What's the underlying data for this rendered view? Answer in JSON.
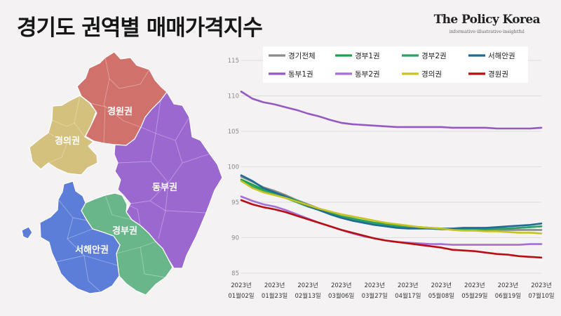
{
  "header": {
    "title": "경기도 권역별 매매가격지수",
    "brand_name": "The Policy Korea",
    "brand_tagline": "informative·illustrative·insightful"
  },
  "map": {
    "regions": [
      {
        "key": "gyeongwon",
        "label": "경원권",
        "color": "#d0716b"
      },
      {
        "key": "gyeongui",
        "label": "경의권",
        "color": "#d4c17e"
      },
      {
        "key": "dongbu",
        "label": "동부권",
        "color": "#9b68cf"
      },
      {
        "key": "gyeongbu",
        "label": "경부권",
        "color": "#68b68a"
      },
      {
        "key": "seohaean",
        "label": "서해안권",
        "color": "#5d7ed8"
      }
    ]
  },
  "chart_data": {
    "type": "line",
    "title": "",
    "xlabel": "",
    "ylabel": "",
    "ylim": [
      85,
      115
    ],
    "yticks": [
      85,
      90,
      95,
      100,
      105,
      110,
      115
    ],
    "grid": true,
    "legend_position": "top",
    "x": [
      "2023년 01월02일",
      "2023년 01월09일",
      "2023년 01월16일",
      "2023년 01월23일",
      "2023년 01월30일",
      "2023년 02월06일",
      "2023년 02월13일",
      "2023년 02월20일",
      "2023년 02월27일",
      "2023년 03월06일",
      "2023년 03월13일",
      "2023년 03월20일",
      "2023년 03월27일",
      "2023년 04월03일",
      "2023년 04월10일",
      "2023년 04월17일",
      "2023년 04월24일",
      "2023년 05월01일",
      "2023년 05월08일",
      "2023년 05월15일",
      "2023년 05월22일",
      "2023년 05월29일",
      "2023년 06월05일",
      "2023년 06월12일",
      "2023년 06월19일",
      "2023년 06월26일",
      "2023년 07월03일",
      "2023년 07월10일"
    ],
    "xtick_labels": [
      {
        "line1": "2023년",
        "line2": "01월02일"
      },
      {
        "line1": "2023년",
        "line2": "01월23일"
      },
      {
        "line1": "2023년",
        "line2": "02월13일"
      },
      {
        "line1": "2023년",
        "line2": "03월06일"
      },
      {
        "line1": "2023년",
        "line2": "03월27일"
      },
      {
        "line1": "2023년",
        "line2": "04월17일"
      },
      {
        "line1": "2023년",
        "line2": "05월08일"
      },
      {
        "line1": "2023년",
        "line2": "05월29일"
      },
      {
        "line1": "2023년",
        "line2": "06월19일"
      },
      {
        "line1": "2023년",
        "line2": "07월10일"
      }
    ],
    "series": [
      {
        "name": "경기전체",
        "color": "#8a8a8a",
        "values": [
          98.6,
          97.9,
          97.1,
          96.6,
          96.0,
          95.3,
          94.7,
          94.1,
          93.5,
          93.0,
          92.7,
          92.3,
          92.0,
          91.8,
          91.6,
          91.5,
          91.4,
          91.3,
          91.2,
          91.2,
          91.2,
          91.1,
          91.1,
          91.1,
          91.1,
          91.1,
          91.1,
          91.1
        ]
      },
      {
        "name": "경부1권",
        "color": "#1aa34a",
        "values": [
          98.2,
          97.5,
          96.8,
          96.3,
          95.8,
          95.2,
          94.6,
          94.0,
          93.5,
          93.0,
          92.7,
          92.4,
          92.1,
          91.9,
          91.7,
          91.6,
          91.5,
          91.4,
          91.3,
          91.2,
          91.2,
          91.2,
          91.2,
          91.3,
          91.3,
          91.4,
          91.5,
          91.6
        ]
      },
      {
        "name": "경부2권",
        "color": "#2fa068",
        "values": [
          98.0,
          97.2,
          96.6,
          96.1,
          95.6,
          95.0,
          94.4,
          93.9,
          93.4,
          92.9,
          92.6,
          92.3,
          92.0,
          91.8,
          91.6,
          91.5,
          91.4,
          91.3,
          91.2,
          91.2,
          91.2,
          91.2,
          91.2,
          91.3,
          91.3,
          91.4,
          91.5,
          91.6
        ]
      },
      {
        "name": "서해안권",
        "color": "#1f6a96",
        "values": [
          98.8,
          98.0,
          97.0,
          96.4,
          95.8,
          95.1,
          94.5,
          93.9,
          93.3,
          92.8,
          92.4,
          92.1,
          91.8,
          91.6,
          91.4,
          91.3,
          91.3,
          91.3,
          91.3,
          91.3,
          91.4,
          91.4,
          91.4,
          91.5,
          91.6,
          91.7,
          91.8,
          92.0
        ]
      },
      {
        "name": "동부1권",
        "color": "#9459c2",
        "values": [
          110.6,
          109.6,
          109.1,
          108.8,
          108.4,
          108.0,
          107.5,
          107.1,
          106.6,
          106.2,
          106.0,
          105.9,
          105.8,
          105.7,
          105.6,
          105.6,
          105.6,
          105.6,
          105.6,
          105.5,
          105.5,
          105.5,
          105.5,
          105.4,
          105.4,
          105.4,
          105.4,
          105.5
        ]
      },
      {
        "name": "동부2권",
        "color": "#a66fd4",
        "values": [
          95.8,
          95.2,
          94.7,
          94.4,
          93.9,
          93.3,
          92.7,
          92.1,
          91.6,
          91.1,
          90.6,
          90.2,
          89.9,
          89.6,
          89.4,
          89.3,
          89.2,
          89.1,
          89.1,
          89.0,
          89.0,
          89.0,
          89.0,
          89.0,
          89.0,
          89.0,
          89.1,
          89.1
        ]
      },
      {
        "name": "경의권",
        "color": "#c7c422",
        "values": [
          98.0,
          97.0,
          96.4,
          96.0,
          95.6,
          95.1,
          94.6,
          94.1,
          93.7,
          93.3,
          93.0,
          92.7,
          92.4,
          92.1,
          91.9,
          91.7,
          91.5,
          91.4,
          91.3,
          91.1,
          91.0,
          91.0,
          90.9,
          90.9,
          90.8,
          90.7,
          90.7,
          90.6
        ]
      },
      {
        "name": "경원권",
        "color": "#b80e14",
        "values": [
          95.3,
          94.7,
          94.3,
          94.0,
          93.6,
          93.1,
          92.6,
          92.1,
          91.6,
          91.1,
          90.7,
          90.3,
          89.9,
          89.6,
          89.4,
          89.2,
          89.0,
          88.8,
          88.6,
          88.3,
          88.2,
          88.1,
          87.9,
          87.7,
          87.6,
          87.4,
          87.3,
          87.2
        ]
      }
    ]
  }
}
